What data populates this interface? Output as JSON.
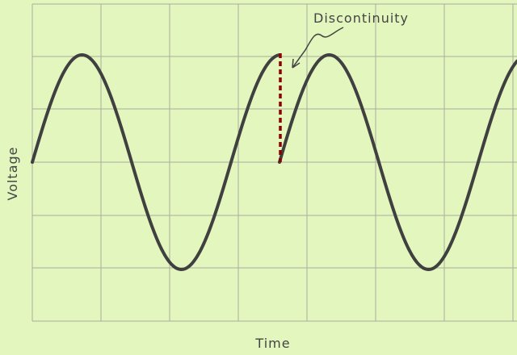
{
  "axes": {
    "x_label": "Time",
    "y_label": "Voltage"
  },
  "annotation": "Discontinuity"
}
